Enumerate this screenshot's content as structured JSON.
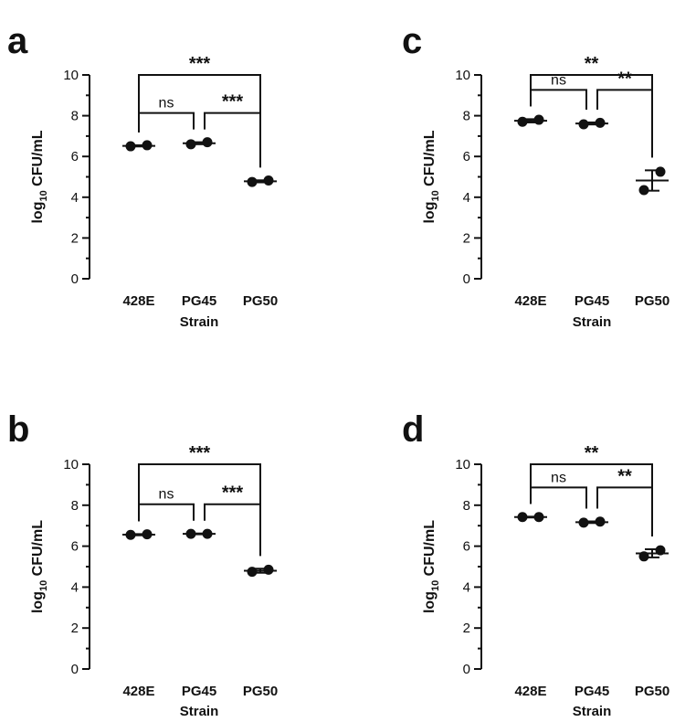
{
  "chart_data": [
    {
      "type": "scatter",
      "panel": "a",
      "title": "",
      "xlabel": "Strain",
      "ylabel_main": "log",
      "ylabel_sub": "10",
      "ylabel_rest": " CFU/mL",
      "categories": [
        "428E",
        "PG45",
        "PG50"
      ],
      "points": [
        [
          6.5,
          6.55
        ],
        [
          6.6,
          6.7
        ],
        [
          4.75,
          4.82
        ]
      ],
      "means": [
        6.52,
        6.65,
        4.78
      ],
      "errors": [
        0.03,
        0.05,
        0.05
      ],
      "ylim": [
        0,
        10
      ],
      "yticks": [
        "0",
        "2",
        "4",
        "6",
        "8",
        "10"
      ],
      "comparisons": [
        {
          "from": 0,
          "to": 1,
          "label": "ns"
        },
        {
          "from": 1,
          "to": 2,
          "label": "***"
        },
        {
          "from": 0,
          "to": 2,
          "label": "***"
        }
      ]
    },
    {
      "type": "scatter",
      "panel": "b",
      "title": "",
      "xlabel": "Strain",
      "ylabel_main": "log",
      "ylabel_sub": "10",
      "ylabel_rest": " CFU/mL",
      "categories": [
        "428E",
        "PG45",
        "PG50"
      ],
      "points": [
        [
          6.55,
          6.58
        ],
        [
          6.6,
          6.6
        ],
        [
          4.75,
          4.85
        ]
      ],
      "means": [
        6.56,
        6.6,
        4.8
      ],
      "errors": [
        0.03,
        0.02,
        0.1
      ],
      "ylim": [
        0,
        10
      ],
      "yticks": [
        "0",
        "2",
        "4",
        "6",
        "8",
        "10"
      ],
      "comparisons": [
        {
          "from": 0,
          "to": 1,
          "label": "ns"
        },
        {
          "from": 1,
          "to": 2,
          "label": "***"
        },
        {
          "from": 0,
          "to": 2,
          "label": "***"
        }
      ]
    },
    {
      "type": "scatter",
      "panel": "c",
      "title": "",
      "xlabel": "Strain",
      "ylabel_main": "log",
      "ylabel_sub": "10",
      "ylabel_rest": " CFU/mL",
      "categories": [
        "428E",
        "PG45",
        "PG50"
      ],
      "points": [
        [
          7.7,
          7.8
        ],
        [
          7.58,
          7.65
        ],
        [
          4.35,
          5.25
        ]
      ],
      "means": [
        7.75,
        7.62,
        4.82
      ],
      "errors": [
        0.08,
        0.05,
        0.5
      ],
      "ylim": [
        0,
        10
      ],
      "yticks": [
        "0",
        "2",
        "4",
        "6",
        "8",
        "10"
      ],
      "comparisons": [
        {
          "from": 0,
          "to": 1,
          "label": "ns"
        },
        {
          "from": 1,
          "to": 2,
          "label": "**"
        },
        {
          "from": 0,
          "to": 2,
          "label": "**"
        }
      ]
    },
    {
      "type": "scatter",
      "panel": "d",
      "title": "",
      "xlabel": "Strain",
      "ylabel_main": "log",
      "ylabel_sub": "10",
      "ylabel_rest": " CFU/mL",
      "categories": [
        "428E",
        "PG45",
        "PG50"
      ],
      "points": [
        [
          7.42,
          7.42
        ],
        [
          7.15,
          7.2
        ],
        [
          5.5,
          5.8
        ]
      ],
      "means": [
        7.42,
        7.17,
        5.65
      ],
      "errors": [
        0.02,
        0.04,
        0.2
      ],
      "ylim": [
        0,
        10
      ],
      "yticks": [
        "0",
        "2",
        "4",
        "6",
        "8",
        "10"
      ],
      "comparisons": [
        {
          "from": 0,
          "to": 1,
          "label": "ns"
        },
        {
          "from": 1,
          "to": 2,
          "label": "**"
        },
        {
          "from": 0,
          "to": 2,
          "label": "**"
        }
      ]
    }
  ]
}
